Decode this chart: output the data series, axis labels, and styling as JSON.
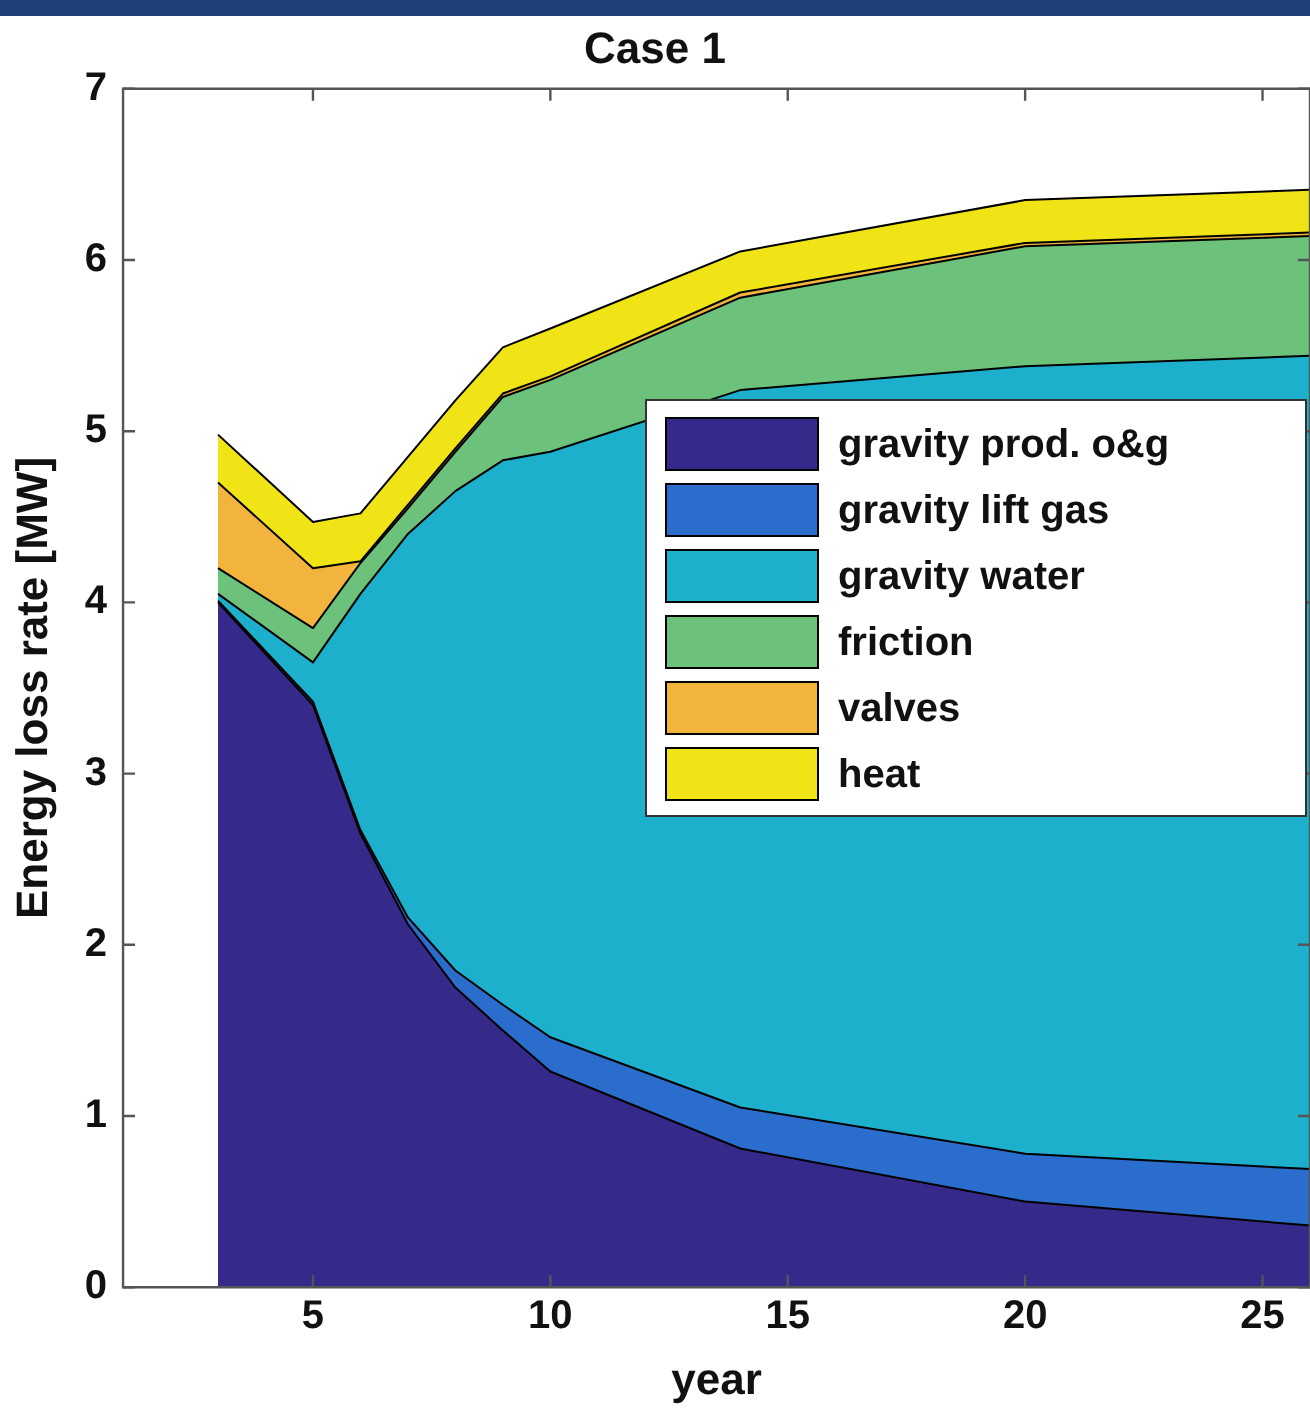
{
  "chart_data": {
    "type": "area",
    "stacked": true,
    "title": "Case 1",
    "xlabel": "year",
    "ylabel": "Energy loss rate [MW]",
    "x": [
      3,
      5,
      6,
      7,
      8,
      9,
      10,
      14,
      20,
      26
    ],
    "series": [
      {
        "name": "gravity prod. o&g",
        "color": "#35298a",
        "values": [
          4.0,
          3.4,
          2.65,
          2.12,
          1.75,
          1.5,
          1.26,
          0.81,
          0.5,
          0.36
        ]
      },
      {
        "name": "gravity lift gas",
        "color": "#2a6dcc",
        "values": [
          0.01,
          0.02,
          0.02,
          0.04,
          0.1,
          0.15,
          0.2,
          0.24,
          0.28,
          0.33
        ]
      },
      {
        "name": "gravity water",
        "color": "#1db0cc",
        "values": [
          0.04,
          0.23,
          1.38,
          2.24,
          2.8,
          3.18,
          3.42,
          4.19,
          4.6,
          4.75
        ]
      },
      {
        "name": "friction",
        "color": "#6cc27a",
        "values": [
          0.15,
          0.2,
          0.18,
          0.15,
          0.23,
          0.37,
          0.42,
          0.54,
          0.7,
          0.7
        ]
      },
      {
        "name": "valves",
        "color": "#f2b43c",
        "values": [
          0.5,
          0.35,
          0.01,
          0.02,
          0.02,
          0.02,
          0.02,
          0.03,
          0.02,
          0.02
        ]
      },
      {
        "name": "heat",
        "color": "#f0e316",
        "values": [
          0.28,
          0.27,
          0.28,
          0.28,
          0.28,
          0.27,
          0.28,
          0.24,
          0.25,
          0.25
        ]
      }
    ],
    "xlim": [
      1,
      26
    ],
    "ylim": [
      0,
      7
    ],
    "xticks": [
      5,
      10,
      15,
      20,
      25
    ],
    "yticks": [
      0,
      1,
      2,
      3,
      4,
      5,
      6,
      7
    ],
    "grid": false,
    "legend": "right"
  }
}
